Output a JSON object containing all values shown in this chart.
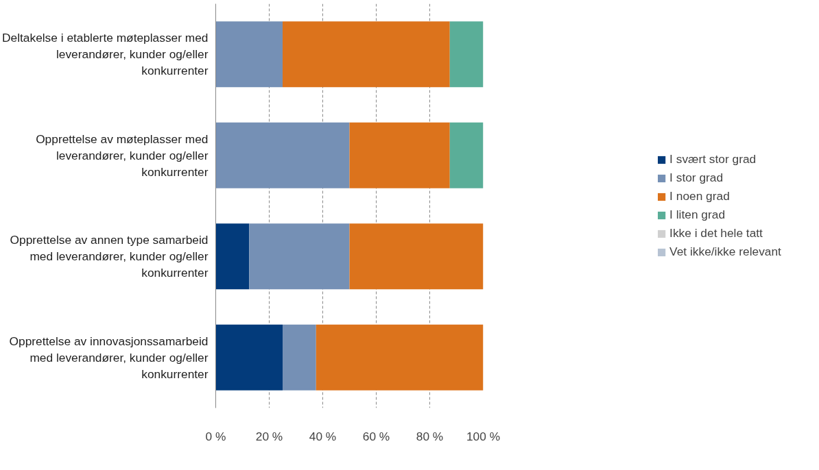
{
  "chart_data": {
    "type": "bar",
    "orientation": "horizontal",
    "stacked": true,
    "categories": [
      "Deltakelse i etablerte møteplasser med leverandører, kunder og/eller konkurrenter",
      "Opprettelse av møteplasser med leverandører, kunder og/eller konkurrenter",
      "Opprettelse av annen type samarbeid med leverandører, kunder og/eller konkurrenter",
      "Opprettelse av innovasjonssamarbeid med leverandører, kunder og/eller konkurrenter"
    ],
    "series": [
      {
        "name": "I svært stor grad",
        "color": "#033b7b",
        "values": [
          0,
          0,
          12.5,
          25
        ]
      },
      {
        "name": "I stor grad",
        "color": "#7590b5",
        "values": [
          25,
          50,
          37.5,
          12.5
        ]
      },
      {
        "name": "I noen grad",
        "color": "#dc731c",
        "values": [
          62.5,
          37.5,
          50,
          62.5
        ]
      },
      {
        "name": "I liten grad",
        "color": "#5aae98",
        "values": [
          12.5,
          12.5,
          0,
          0
        ]
      },
      {
        "name": "Ikke i det hele tatt",
        "color": "#d0d0d0",
        "values": [
          0,
          0,
          0,
          0
        ]
      },
      {
        "name": "Vet ikke/ikke relevant",
        "color": "#b7c3d3",
        "values": [
          0,
          0,
          0,
          0
        ]
      }
    ],
    "xlim": [
      0,
      100
    ],
    "xticks": [
      {
        "value": 0,
        "label": "0 %"
      },
      {
        "value": 20,
        "label": "20 %"
      },
      {
        "value": 40,
        "label": "40 %"
      },
      {
        "value": 60,
        "label": "60 %"
      },
      {
        "value": 80,
        "label": "80 %"
      },
      {
        "value": 100,
        "label": "100 %"
      }
    ],
    "grid": "x",
    "legend": "right"
  }
}
